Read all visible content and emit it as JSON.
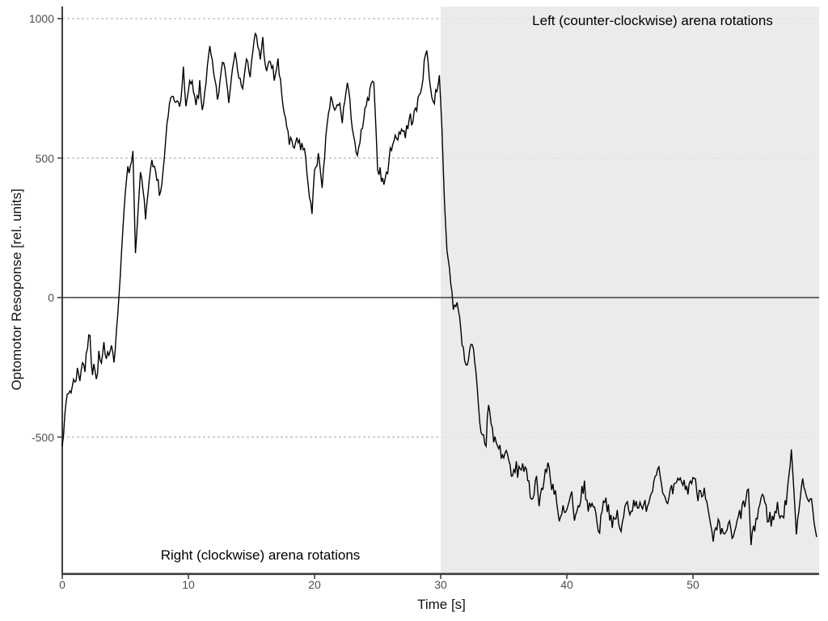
{
  "chart_data": {
    "type": "line",
    "title": "",
    "xlabel": "Time [s]",
    "ylabel": "Optomotor Resoponse [rel. units]",
    "xlim": [
      0,
      60
    ],
    "ylim": [
      -990,
      1045
    ],
    "x_ticks": [
      0,
      10,
      20,
      30,
      40,
      50
    ],
    "y_ticks": [
      1000,
      500,
      0,
      -500
    ],
    "dashed_gridlines_at_y": [
      1000,
      500,
      -500
    ],
    "solid_line_at_y": 0,
    "grid": "dashed horizontal lines at labeled ticks only",
    "legend_position": "none",
    "shaded_region": {
      "x_start": 30,
      "x_end": 60,
      "label": "Left (counter-clockwise) arena rotations",
      "fill": "#e9e9e9"
    },
    "unshaded_region_label": "Right (clockwise) arena rotations",
    "colors": {
      "trace": "#000000",
      "gridline": "#a9a9a9",
      "axis_line": "#3d3d3d",
      "zero_line": "#404040",
      "tick_label": "#4d4d4d",
      "shade_overlay": "rgba(231,231,231,0.85)"
    },
    "series": [
      {
        "name": "optomotor response",
        "noise_amplitude": 32,
        "keypoints": [
          [
            0,
            -513
          ],
          [
            0.2,
            -440
          ],
          [
            0.35,
            -350
          ],
          [
            0.5,
            -339
          ],
          [
            0.8,
            -320
          ],
          [
            1.0,
            -290
          ],
          [
            1.2,
            -267
          ],
          [
            1.4,
            -287
          ],
          [
            1.6,
            -223
          ],
          [
            1.8,
            -260
          ],
          [
            2.0,
            -171
          ],
          [
            2.2,
            -136
          ],
          [
            2.35,
            -281
          ],
          [
            2.5,
            -230
          ],
          [
            2.7,
            -301
          ],
          [
            2.9,
            -214
          ],
          [
            3.1,
            -240
          ],
          [
            3.3,
            -180
          ],
          [
            3.5,
            -238
          ],
          [
            3.7,
            -180
          ],
          [
            3.9,
            -165
          ],
          [
            4.1,
            -217
          ],
          [
            4.25,
            -151
          ],
          [
            4.4,
            -60
          ],
          [
            4.6,
            80
          ],
          [
            4.8,
            240
          ],
          [
            5.0,
            380
          ],
          [
            5.2,
            481
          ],
          [
            5.4,
            450
          ],
          [
            5.6,
            536
          ],
          [
            5.8,
            159
          ],
          [
            6.0,
            300
          ],
          [
            6.2,
            449
          ],
          [
            6.4,
            380
          ],
          [
            6.6,
            293
          ],
          [
            6.8,
            370
          ],
          [
            7.1,
            481
          ],
          [
            7.4,
            430
          ],
          [
            7.8,
            380
          ],
          [
            8.0,
            450
          ],
          [
            8.3,
            612
          ],
          [
            8.6,
            719
          ],
          [
            8.9,
            700
          ],
          [
            9.2,
            730
          ],
          [
            9.4,
            684
          ],
          [
            9.6,
            826
          ],
          [
            9.8,
            684
          ],
          [
            10.2,
            777
          ],
          [
            10.6,
            684
          ],
          [
            10.9,
            756
          ],
          [
            11.1,
            670
          ],
          [
            11.4,
            780
          ],
          [
            11.7,
            893
          ],
          [
            12.0,
            800
          ],
          [
            12.3,
            710
          ],
          [
            12.6,
            800
          ],
          [
            12.8,
            855
          ],
          [
            13.2,
            710
          ],
          [
            13.7,
            898
          ],
          [
            14.2,
            739
          ],
          [
            14.6,
            855
          ],
          [
            14.9,
            797
          ],
          [
            15.3,
            945
          ],
          [
            15.7,
            864
          ],
          [
            15.9,
            922
          ],
          [
            16.2,
            800
          ],
          [
            16.5,
            849
          ],
          [
            16.8,
            790
          ],
          [
            17.1,
            840
          ],
          [
            17.5,
            690
          ],
          [
            17.8,
            620
          ],
          [
            18.0,
            545
          ],
          [
            18.4,
            540
          ],
          [
            18.8,
            555
          ],
          [
            19.2,
            530
          ],
          [
            19.5,
            409
          ],
          [
            19.8,
            299
          ],
          [
            20.0,
            467
          ],
          [
            20.3,
            510
          ],
          [
            20.6,
            386
          ],
          [
            21.0,
            632
          ],
          [
            21.3,
            710
          ],
          [
            21.6,
            660
          ],
          [
            21.9,
            700
          ],
          [
            22.2,
            640
          ],
          [
            22.6,
            768
          ],
          [
            23.0,
            620
          ],
          [
            23.4,
            492
          ],
          [
            23.8,
            617
          ],
          [
            24.2,
            700
          ],
          [
            24.7,
            771
          ],
          [
            25.0,
            478
          ],
          [
            25.3,
            429
          ],
          [
            25.6,
            414
          ],
          [
            26.0,
            516
          ],
          [
            26.2,
            574
          ],
          [
            26.5,
            560
          ],
          [
            26.8,
            610
          ],
          [
            27.2,
            590
          ],
          [
            27.6,
            640
          ],
          [
            28.0,
            660
          ],
          [
            28.4,
            740
          ],
          [
            28.9,
            893
          ],
          [
            29.2,
            750
          ],
          [
            29.4,
            690
          ],
          [
            29.9,
            797
          ],
          [
            30.1,
            603
          ],
          [
            30.3,
            342
          ],
          [
            30.5,
            168
          ],
          [
            30.8,
            60
          ],
          [
            31.0,
            -20
          ],
          [
            31.2,
            -45
          ],
          [
            31.4,
            -30
          ],
          [
            31.6,
            -113
          ],
          [
            31.8,
            -203
          ],
          [
            32.1,
            -230
          ],
          [
            32.4,
            -188
          ],
          [
            32.6,
            -194
          ],
          [
            32.9,
            -325
          ],
          [
            33.1,
            -460
          ],
          [
            33.4,
            -500
          ],
          [
            33.6,
            -533
          ],
          [
            33.75,
            -374
          ],
          [
            34.0,
            -450
          ],
          [
            34.2,
            -504
          ],
          [
            34.6,
            -536
          ],
          [
            35.0,
            -577
          ],
          [
            35.3,
            -545
          ],
          [
            35.6,
            -652
          ],
          [
            35.9,
            -615
          ],
          [
            36.2,
            -620
          ],
          [
            36.5,
            -594
          ],
          [
            36.9,
            -658
          ],
          [
            37.2,
            -722
          ],
          [
            37.6,
            -649
          ],
          [
            37.8,
            -722
          ],
          [
            38.1,
            -678
          ],
          [
            38.5,
            -594
          ],
          [
            38.8,
            -667
          ],
          [
            39.1,
            -693
          ],
          [
            39.4,
            -818
          ],
          [
            39.7,
            -760
          ],
          [
            39.9,
            -783
          ],
          [
            40.4,
            -701
          ],
          [
            40.6,
            -818
          ],
          [
            41.0,
            -731
          ],
          [
            41.4,
            -673
          ],
          [
            41.7,
            -768
          ],
          [
            42.0,
            -722
          ],
          [
            42.6,
            -838
          ],
          [
            42.9,
            -710
          ],
          [
            43.3,
            -751
          ],
          [
            43.6,
            -826
          ],
          [
            44.0,
            -774
          ],
          [
            44.3,
            -846
          ],
          [
            44.7,
            -731
          ],
          [
            45.1,
            -760
          ],
          [
            45.5,
            -720
          ],
          [
            45.9,
            -770
          ],
          [
            46.3,
            -740
          ],
          [
            46.7,
            -700
          ],
          [
            47.2,
            -591
          ],
          [
            47.6,
            -680
          ],
          [
            47.9,
            -754
          ],
          [
            48.3,
            -700
          ],
          [
            48.7,
            -680
          ],
          [
            49.1,
            -652
          ],
          [
            49.5,
            -690
          ],
          [
            50.0,
            -643
          ],
          [
            50.4,
            -700
          ],
          [
            50.9,
            -678
          ],
          [
            51.3,
            -800
          ],
          [
            51.6,
            -875
          ],
          [
            52.0,
            -820
          ],
          [
            52.4,
            -860
          ],
          [
            52.8,
            -810
          ],
          [
            53.2,
            -870
          ],
          [
            53.6,
            -790
          ],
          [
            54.0,
            -750
          ],
          [
            54.4,
            -687
          ],
          [
            54.6,
            -884
          ],
          [
            55.0,
            -800
          ],
          [
            55.5,
            -701
          ],
          [
            55.9,
            -780
          ],
          [
            56.3,
            -800
          ],
          [
            56.7,
            -750
          ],
          [
            57.1,
            -790
          ],
          [
            57.4,
            -730
          ],
          [
            57.8,
            -548
          ],
          [
            58.2,
            -838
          ],
          [
            58.7,
            -634
          ],
          [
            59.1,
            -750
          ],
          [
            59.4,
            -720
          ],
          [
            59.8,
            -861
          ]
        ]
      }
    ]
  }
}
